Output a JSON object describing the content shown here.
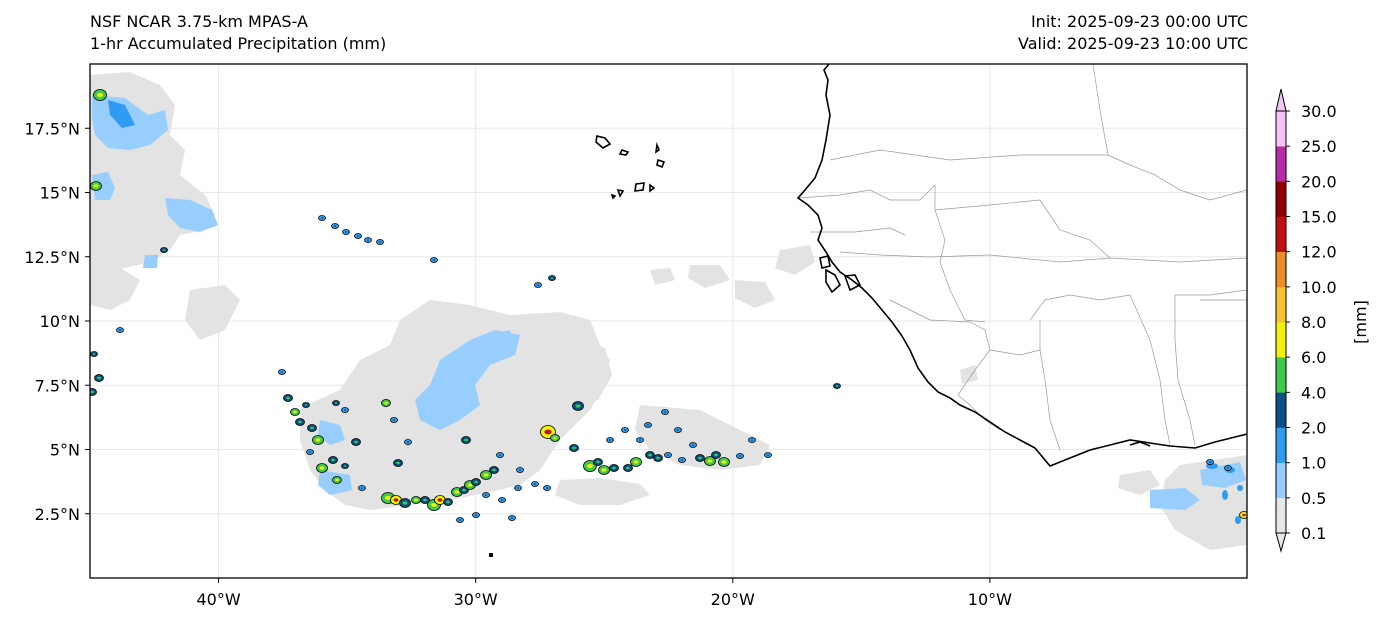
{
  "header": {
    "model": "NSF NCAR 3.75-km MPAS-A",
    "field": "1-hr Accumulated Precipitation (mm)",
    "init": "Init: 2025-09-23 00:00 UTC",
    "valid": "Valid: 2025-09-23 10:00 UTC"
  },
  "map": {
    "lon_range": [
      -45,
      0
    ],
    "lat_range": [
      0,
      20
    ],
    "lat_ticks": [
      {
        "value": 17.5,
        "label": "17.5°N"
      },
      {
        "value": 15,
        "label": "15°N"
      },
      {
        "value": 12.5,
        "label": "12.5°N"
      },
      {
        "value": 10,
        "label": "10°N"
      },
      {
        "value": 7.5,
        "label": "7.5°N"
      },
      {
        "value": 5,
        "label": "5°N"
      },
      {
        "value": 2.5,
        "label": "2.5°N"
      }
    ],
    "lon_ticks": [
      {
        "value": -40,
        "label": "40°W"
      },
      {
        "value": -30,
        "label": "30°W"
      },
      {
        "value": -20,
        "label": "20°W"
      },
      {
        "value": -10,
        "label": "10°W"
      }
    ],
    "gridlines": true,
    "colors": {
      "trace": "#e3e3e3",
      "light": "#98cefe",
      "moderate": "#2f9bf1",
      "heavy": "#0a4f85",
      "intense": "#3ec94b",
      "extreme": "#c01010",
      "coast": "#000000",
      "borders": "#9a9a9a"
    }
  },
  "colorbar": {
    "label": "[mm]",
    "levels": [
      "0.1",
      "0.5",
      "1.0",
      "2.0",
      "4.0",
      "6.0",
      "8.0",
      "10.0",
      "12.0",
      "15.0",
      "20.0",
      "25.0",
      "30.0"
    ],
    "colors": [
      "#e6e6e6",
      "#98cefe",
      "#2f9bf1",
      "#0a4f85",
      "#3ec94b",
      "#f3f10b",
      "#f5c132",
      "#ee8c28",
      "#c01010",
      "#930000",
      "#b92aa9",
      "#f6c3f6"
    ]
  }
}
